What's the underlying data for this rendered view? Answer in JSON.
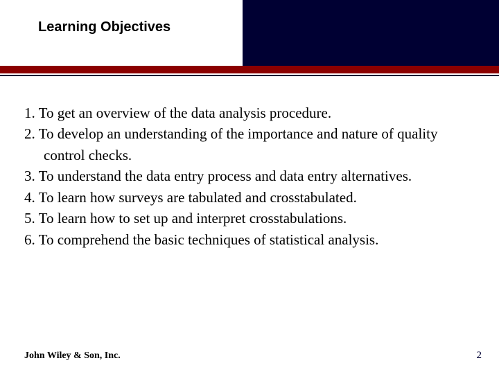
{
  "colors": {
    "navy": "#000033",
    "red_accent": "#8b0000",
    "background": "#ffffff",
    "text": "#000000",
    "page_number": "#000033"
  },
  "typography": {
    "title_font": "Arial, Helvetica, sans-serif",
    "title_fontsize": 20,
    "title_weight": "bold",
    "body_font": "Georgia, 'Times New Roman', serif",
    "body_fontsize": 21,
    "footer_fontsize": 14
  },
  "header": {
    "title": "Learning Objectives"
  },
  "objectives": {
    "items": [
      "To get an overview of the data analysis procedure.",
      "To develop an understanding of the importance and nature of quality control checks.",
      "To understand the data entry process and data entry alternatives.",
      "To learn how surveys are tabulated and crosstabulated.",
      "To learn how to set up and interpret crosstabulations.",
      "To comprehend the basic techniques of statistical analysis."
    ]
  },
  "footer": {
    "publisher": "John Wiley & Son, Inc.",
    "page_number": "2"
  }
}
